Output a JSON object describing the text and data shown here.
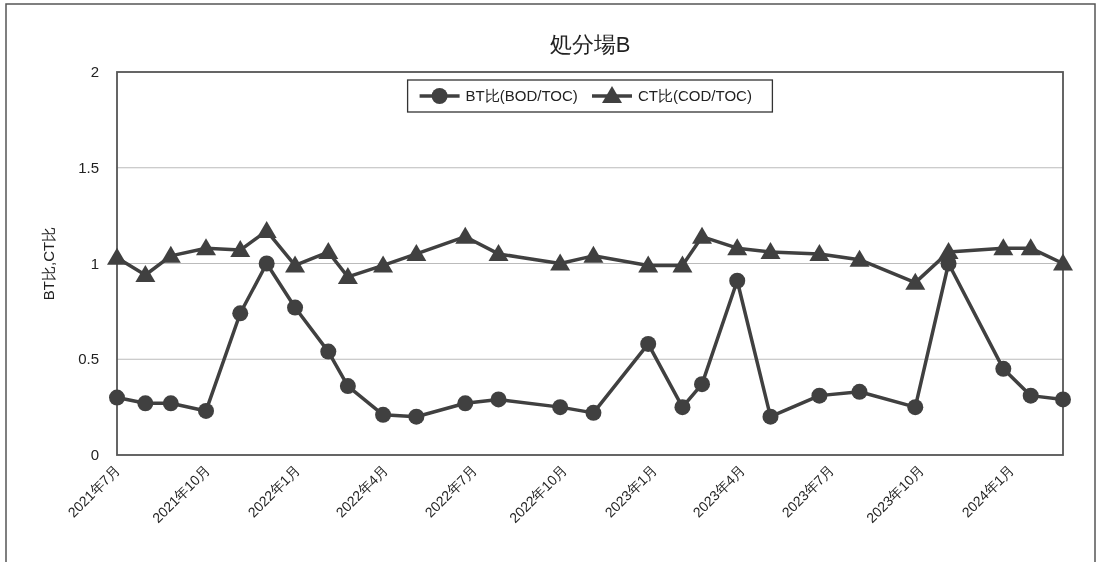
{
  "chart_data": {
    "type": "line",
    "title": "処分場B",
    "ylabel": "BT比,CT比",
    "x": [
      "2021-07-01",
      "2021-07-30",
      "2021-08-25",
      "2021-09-30",
      "2021-11-04",
      "2021-12-01",
      "2021-12-30",
      "2022-02-02",
      "2022-02-22",
      "2022-03-30",
      "2022-05-03",
      "2022-06-22",
      "2022-07-26",
      "2022-09-27",
      "2022-10-31",
      "2022-12-26",
      "2023-01-30",
      "2023-02-19",
      "2023-03-27",
      "2023-04-30",
      "2023-06-19",
      "2023-07-30",
      "2023-09-25",
      "2023-10-29",
      "2023-12-24",
      "2024-01-21",
      "2024-02-23"
    ],
    "series": [
      {
        "name": "BT比(BOD/TOC)",
        "color": "#404040",
        "marker": "circle",
        "values": [
          0.3,
          0.27,
          0.27,
          0.23,
          0.74,
          1.0,
          0.77,
          0.54,
          0.36,
          0.21,
          0.2,
          0.27,
          0.29,
          0.25,
          0.22,
          0.58,
          0.25,
          0.37,
          0.91,
          0.2,
          0.31,
          0.33,
          0.25,
          1.0,
          0.45,
          0.31,
          0.29
        ]
      },
      {
        "name": "CT比(COD/TOC)",
        "color": "#404040",
        "marker": "triangle",
        "values": [
          1.03,
          0.94,
          1.04,
          1.08,
          1.07,
          1.17,
          0.99,
          1.06,
          0.93,
          0.99,
          1.05,
          1.14,
          1.05,
          1.0,
          1.04,
          0.99,
          0.99,
          1.14,
          1.08,
          1.06,
          1.05,
          1.02,
          0.9,
          1.06,
          1.08,
          1.08,
          1.0
        ]
      }
    ],
    "xlim": [
      "2021-07-01",
      "2024-02-23"
    ],
    "xticks": [
      {
        "value": "2021-07-01",
        "label": "2021年7月"
      },
      {
        "value": "2021-10-01",
        "label": "2021年10月"
      },
      {
        "value": "2022-01-01",
        "label": "2022年1月"
      },
      {
        "value": "2022-04-01",
        "label": "2022年4月"
      },
      {
        "value": "2022-07-01",
        "label": "2022年7月"
      },
      {
        "value": "2022-10-01",
        "label": "2022年10月"
      },
      {
        "value": "2023-01-01",
        "label": "2023年1月"
      },
      {
        "value": "2023-04-01",
        "label": "2023年4月"
      },
      {
        "value": "2023-07-01",
        "label": "2023年7月"
      },
      {
        "value": "2023-10-01",
        "label": "2023年10月"
      },
      {
        "value": "2024-01-01",
        "label": "2024年1月"
      }
    ],
    "ylim": [
      0,
      2
    ],
    "yticks": [
      0,
      0.5,
      1,
      1.5,
      2
    ],
    "grid": "y",
    "legend": "top",
    "line_style": "solid"
  }
}
